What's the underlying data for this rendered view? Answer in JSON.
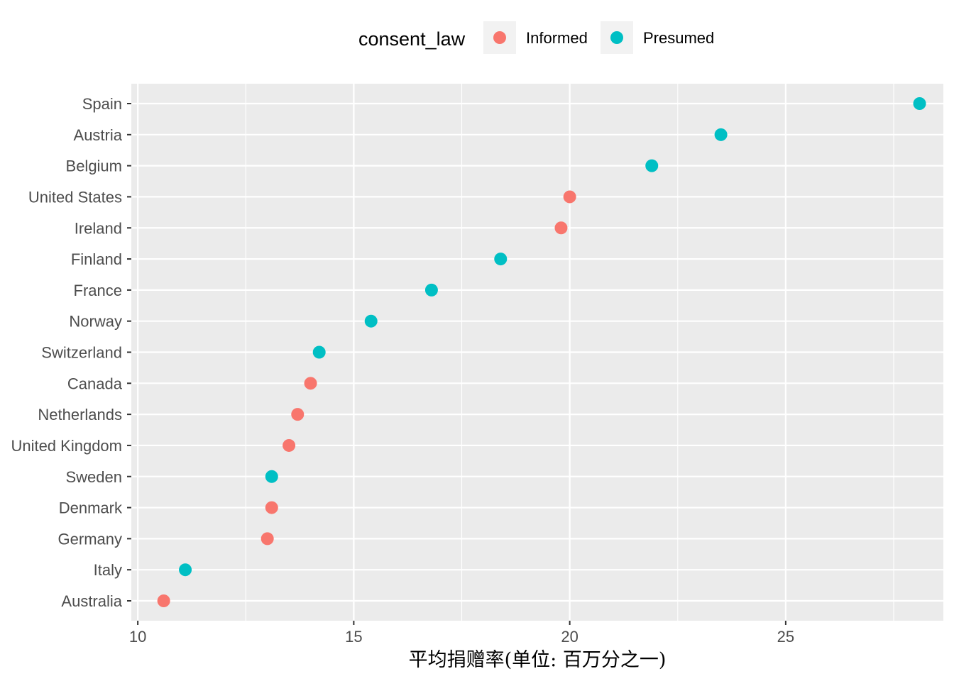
{
  "chart_data": {
    "type": "scatter",
    "title": "",
    "xlabel": "平均捐赠率(单位: 百万分之一)",
    "ylabel": "",
    "xlim": [
      9.85,
      28.65
    ],
    "xticks": [
      10,
      15,
      20,
      25
    ],
    "grid": true,
    "legend": {
      "title": "consent_law",
      "position": "top",
      "entries": [
        {
          "name": "Informed",
          "color": "#F8766D"
        },
        {
          "name": "Presumed",
          "color": "#00BFC4"
        }
      ]
    },
    "categories": [
      "Spain",
      "Austria",
      "Belgium",
      "United States",
      "Ireland",
      "Finland",
      "France",
      "Norway",
      "Switzerland",
      "Canada",
      "Netherlands",
      "United Kingdom",
      "Sweden",
      "Denmark",
      "Germany",
      "Italy",
      "Australia"
    ],
    "points": [
      {
        "country": "Spain",
        "value": 28.1,
        "consent_law": "Presumed"
      },
      {
        "country": "Austria",
        "value": 23.5,
        "consent_law": "Presumed"
      },
      {
        "country": "Belgium",
        "value": 21.9,
        "consent_law": "Presumed"
      },
      {
        "country": "United States",
        "value": 20.0,
        "consent_law": "Informed"
      },
      {
        "country": "Ireland",
        "value": 19.8,
        "consent_law": "Informed"
      },
      {
        "country": "Finland",
        "value": 18.4,
        "consent_law": "Presumed"
      },
      {
        "country": "France",
        "value": 16.8,
        "consent_law": "Presumed"
      },
      {
        "country": "Norway",
        "value": 15.4,
        "consent_law": "Presumed"
      },
      {
        "country": "Switzerland",
        "value": 14.2,
        "consent_law": "Presumed"
      },
      {
        "country": "Canada",
        "value": 14.0,
        "consent_law": "Informed"
      },
      {
        "country": "Netherlands",
        "value": 13.7,
        "consent_law": "Informed"
      },
      {
        "country": "United Kingdom",
        "value": 13.5,
        "consent_law": "Informed"
      },
      {
        "country": "Sweden",
        "value": 13.1,
        "consent_law": "Presumed"
      },
      {
        "country": "Denmark",
        "value": 13.1,
        "consent_law": "Informed"
      },
      {
        "country": "Germany",
        "value": 13.0,
        "consent_law": "Informed"
      },
      {
        "country": "Italy",
        "value": 11.1,
        "consent_law": "Presumed"
      },
      {
        "country": "Australia",
        "value": 10.6,
        "consent_law": "Informed"
      }
    ],
    "colors": {
      "panel_bg": "#EBEBEB",
      "grid_major": "#FFFFFF",
      "tick_text": "#4D4D4D",
      "tick_mark": "#333333",
      "legend_key_bg": "#F2F2F2"
    }
  }
}
